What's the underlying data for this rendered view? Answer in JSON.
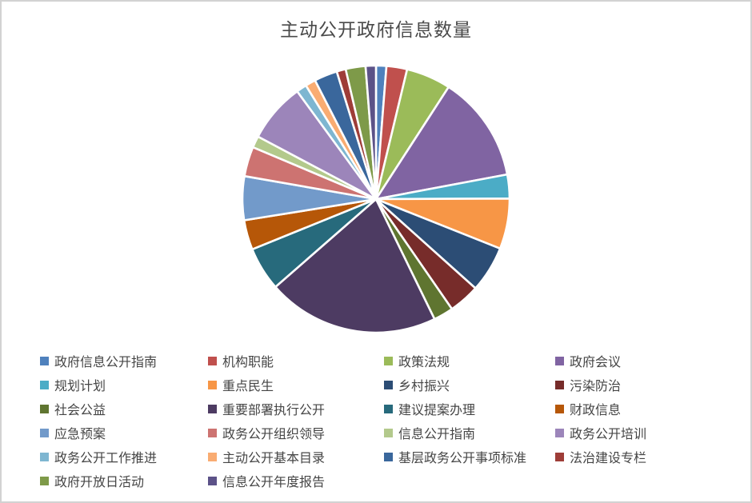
{
  "window": {
    "background_color": "#FFFFFF",
    "border_color": "#D2D2D2"
  },
  "chart_data": {
    "type": "pie",
    "title": "主动公开政府信息数量",
    "title_color": "#4A4A4A",
    "legend_position": "bottom",
    "start_angle_deg": 0,
    "direction": "clockwise",
    "slice_gap_color": "#FFFFFF",
    "values_unit": "estimated_percent_share",
    "categories": [
      "政府信息公开指南",
      "机构职能",
      "政策法规",
      "政府会议",
      "规划计划",
      "重点民生",
      "乡村振兴",
      "污染防治",
      "社会公益",
      "重要部署执行公开",
      "建议提案办理",
      "财政信息",
      "应急预案",
      "政务公开组织领导",
      "信息公开指南",
      "政务公开培训",
      "政务公开工作推进",
      "主动公开基本目录",
      "基层政务公开事项标准",
      "法治建设专栏",
      "政府开放日活动",
      "信息公开年度报告"
    ],
    "values": [
      1.25,
      2.5,
      5.4,
      12.9,
      2.9,
      6.1,
      5.6,
      3.75,
      2.4,
      20.8,
      5.3,
      3.6,
      5.3,
      3.6,
      1.4,
      7.2,
      1.25,
      1.25,
      2.8,
      1.1,
      2.4,
      1.25
    ],
    "colors": [
      "#4F81BD",
      "#C0504D",
      "#9BBB59",
      "#8064A2",
      "#4BACC6",
      "#F79646",
      "#2C4D75",
      "#772C2A",
      "#5F7530",
      "#4D3B62",
      "#276A7C",
      "#B65708",
      "#729ACA",
      "#CD7371",
      "#B3C98C",
      "#9C85BA",
      "#7EB6D1",
      "#F9AC72",
      "#3A679C",
      "#9E3D38",
      "#7E9A49",
      "#5C5288"
    ]
  }
}
